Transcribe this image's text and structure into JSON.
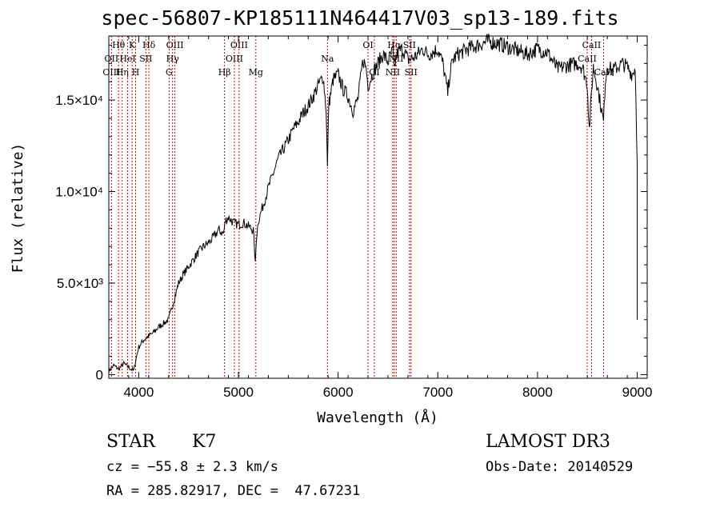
{
  "page": {
    "title": "spec-56807-KP185111N464417V03_sp13-189.fits",
    "info_left": {
      "class_label": "STAR",
      "subclass": "K7",
      "cz": "cz = −55.8 ± 2.3 km/s",
      "coords": "RA = 285.82917, DEC =  47.67231"
    },
    "info_right": {
      "survey": "LAMOST DR3",
      "obs_date": "Obs-Date: 20140529"
    }
  },
  "chart_data": {
    "type": "line",
    "title": "spec-56807-KP185111N464417V03_sp13-189.fits",
    "xlabel": "Wavelength (Å)",
    "ylabel": "Flux (relative)",
    "xlim": [
      3700,
      9100
    ],
    "ylim": [
      -200,
      18500
    ],
    "x_ticks": [
      4000,
      5000,
      6000,
      7000,
      8000,
      9000
    ],
    "y_ticks": [
      {
        "value": 0,
        "label": "0"
      },
      {
        "value": 5000,
        "label": "5.0×10³"
      },
      {
        "value": 10000,
        "label": "1.0×10⁴"
      },
      {
        "value": 15000,
        "label": "1.5×10⁴"
      }
    ],
    "grid": false,
    "series": [
      {
        "color": "#000000",
        "x": [
          3700,
          3750,
          3800,
          3850,
          3900,
          3950,
          3970,
          4000,
          4050,
          4100,
          4150,
          4200,
          4250,
          4300,
          4320,
          4340,
          4360,
          4400,
          4450,
          4500,
          4550,
          4600,
          4650,
          4700,
          4750,
          4800,
          4850,
          4870,
          4900,
          4950,
          5000,
          5050,
          5100,
          5150,
          5170,
          5180,
          5200,
          5250,
          5300,
          5350,
          5400,
          5450,
          5500,
          5550,
          5600,
          5650,
          5700,
          5750,
          5800,
          5850,
          5880,
          5893,
          5905,
          5950,
          6000,
          6050,
          6100,
          6150,
          6200,
          6250,
          6280,
          6300,
          6350,
          6400,
          6450,
          6500,
          6550,
          6563,
          6580,
          6600,
          6650,
          6700,
          6750,
          6800,
          6850,
          6900,
          6950,
          7000,
          7050,
          7100,
          7120,
          7150,
          7200,
          7300,
          7400,
          7500,
          7600,
          7700,
          7800,
          7900,
          8000,
          8100,
          8200,
          8300,
          8400,
          8450,
          8498,
          8520,
          8542,
          8560,
          8600,
          8662,
          8680,
          8700,
          8750,
          8800,
          8850,
          8900,
          8950,
          8980,
          9000
        ],
        "y": [
          200,
          500,
          300,
          600,
          400,
          200,
          800,
          1500,
          1900,
          2100,
          2300,
          2600,
          2800,
          3000,
          3400,
          3800,
          4200,
          5000,
          5500,
          5900,
          6300,
          6700,
          7000,
          7200,
          7500,
          7900,
          7700,
          8400,
          8600,
          8300,
          8200,
          8300,
          8100,
          7900,
          6000,
          7500,
          8400,
          9300,
          10200,
          11000,
          11800,
          12300,
          12800,
          13400,
          13800,
          14300,
          14700,
          15200,
          15800,
          16300,
          14500,
          11300,
          14700,
          16100,
          16400,
          15600,
          15200,
          14400,
          15100,
          17200,
          16800,
          15800,
          16500,
          17000,
          17500,
          17100,
          17700,
          16500,
          17300,
          17600,
          17800,
          17200,
          17300,
          17500,
          17800,
          17500,
          17600,
          17800,
          17000,
          15400,
          16400,
          17200,
          17500,
          17800,
          18000,
          18200,
          18100,
          17900,
          17700,
          17500,
          17800,
          17600,
          16700,
          16900,
          17000,
          16800,
          15900,
          13400,
          15500,
          16800,
          15800,
          13800,
          16100,
          16900,
          16600,
          16800,
          17000,
          16800,
          16400,
          16800,
          11500
        ]
      }
    ],
    "annotations": {
      "spectral_lines": [
        {
          "label": "Hθ",
          "wavelength": 3798,
          "row": 0
        },
        {
          "label": "OII",
          "wavelength": 3727,
          "row": 1
        },
        {
          "label": "OIII",
          "wavelength": 3727,
          "row": 2
        },
        {
          "label": "K",
          "wavelength": 3934,
          "row": 0
        },
        {
          "label": "HeI",
          "wavelength": 3889,
          "row": 1
        },
        {
          "label": "Hη",
          "wavelength": 3835,
          "row": 2
        },
        {
          "label": "H",
          "wavelength": 3969,
          "row": 2
        },
        {
          "label": "Hδ",
          "wavelength": 4102,
          "row": 0
        },
        {
          "label": "SII",
          "wavelength": 4072,
          "row": 1
        },
        {
          "label": "OIII",
          "wavelength": 4363,
          "row": 0
        },
        {
          "label": "Hγ",
          "wavelength": 4340,
          "row": 1
        },
        {
          "label": "G",
          "wavelength": 4305,
          "row": 2
        },
        {
          "label": "OIII",
          "wavelength": 5007,
          "row": 0
        },
        {
          "label": "OIII",
          "wavelength": 4959,
          "row": 1
        },
        {
          "label": "Hβ",
          "wavelength": 4861,
          "row": 2
        },
        {
          "label": "Mg",
          "wavelength": 5175,
          "row": 2
        },
        {
          "label": "Na",
          "wavelength": 5893,
          "row": 1
        },
        {
          "label": "OI",
          "wavelength": 6300,
          "row": 0
        },
        {
          "label": "OI",
          "wavelength": 6363,
          "row": 2
        },
        {
          "label": "Hα",
          "wavelength": 6563,
          "row": 0
        },
        {
          "label": "SII",
          "wavelength": 6716,
          "row": 0
        },
        {
          "label": "NII",
          "wavelength": 6583,
          "row": 1
        },
        {
          "label": "NII",
          "wavelength": 6548,
          "row": 2
        },
        {
          "label": "SII",
          "wavelength": 6731,
          "row": 2
        },
        {
          "label": "CaII",
          "wavelength": 8542,
          "row": 0
        },
        {
          "label": "CaII",
          "wavelength": 8498,
          "row": 1
        },
        {
          "label": "CaII",
          "wavelength": 8662,
          "row": 2
        }
      ],
      "line_color": "#cc0000"
    }
  }
}
